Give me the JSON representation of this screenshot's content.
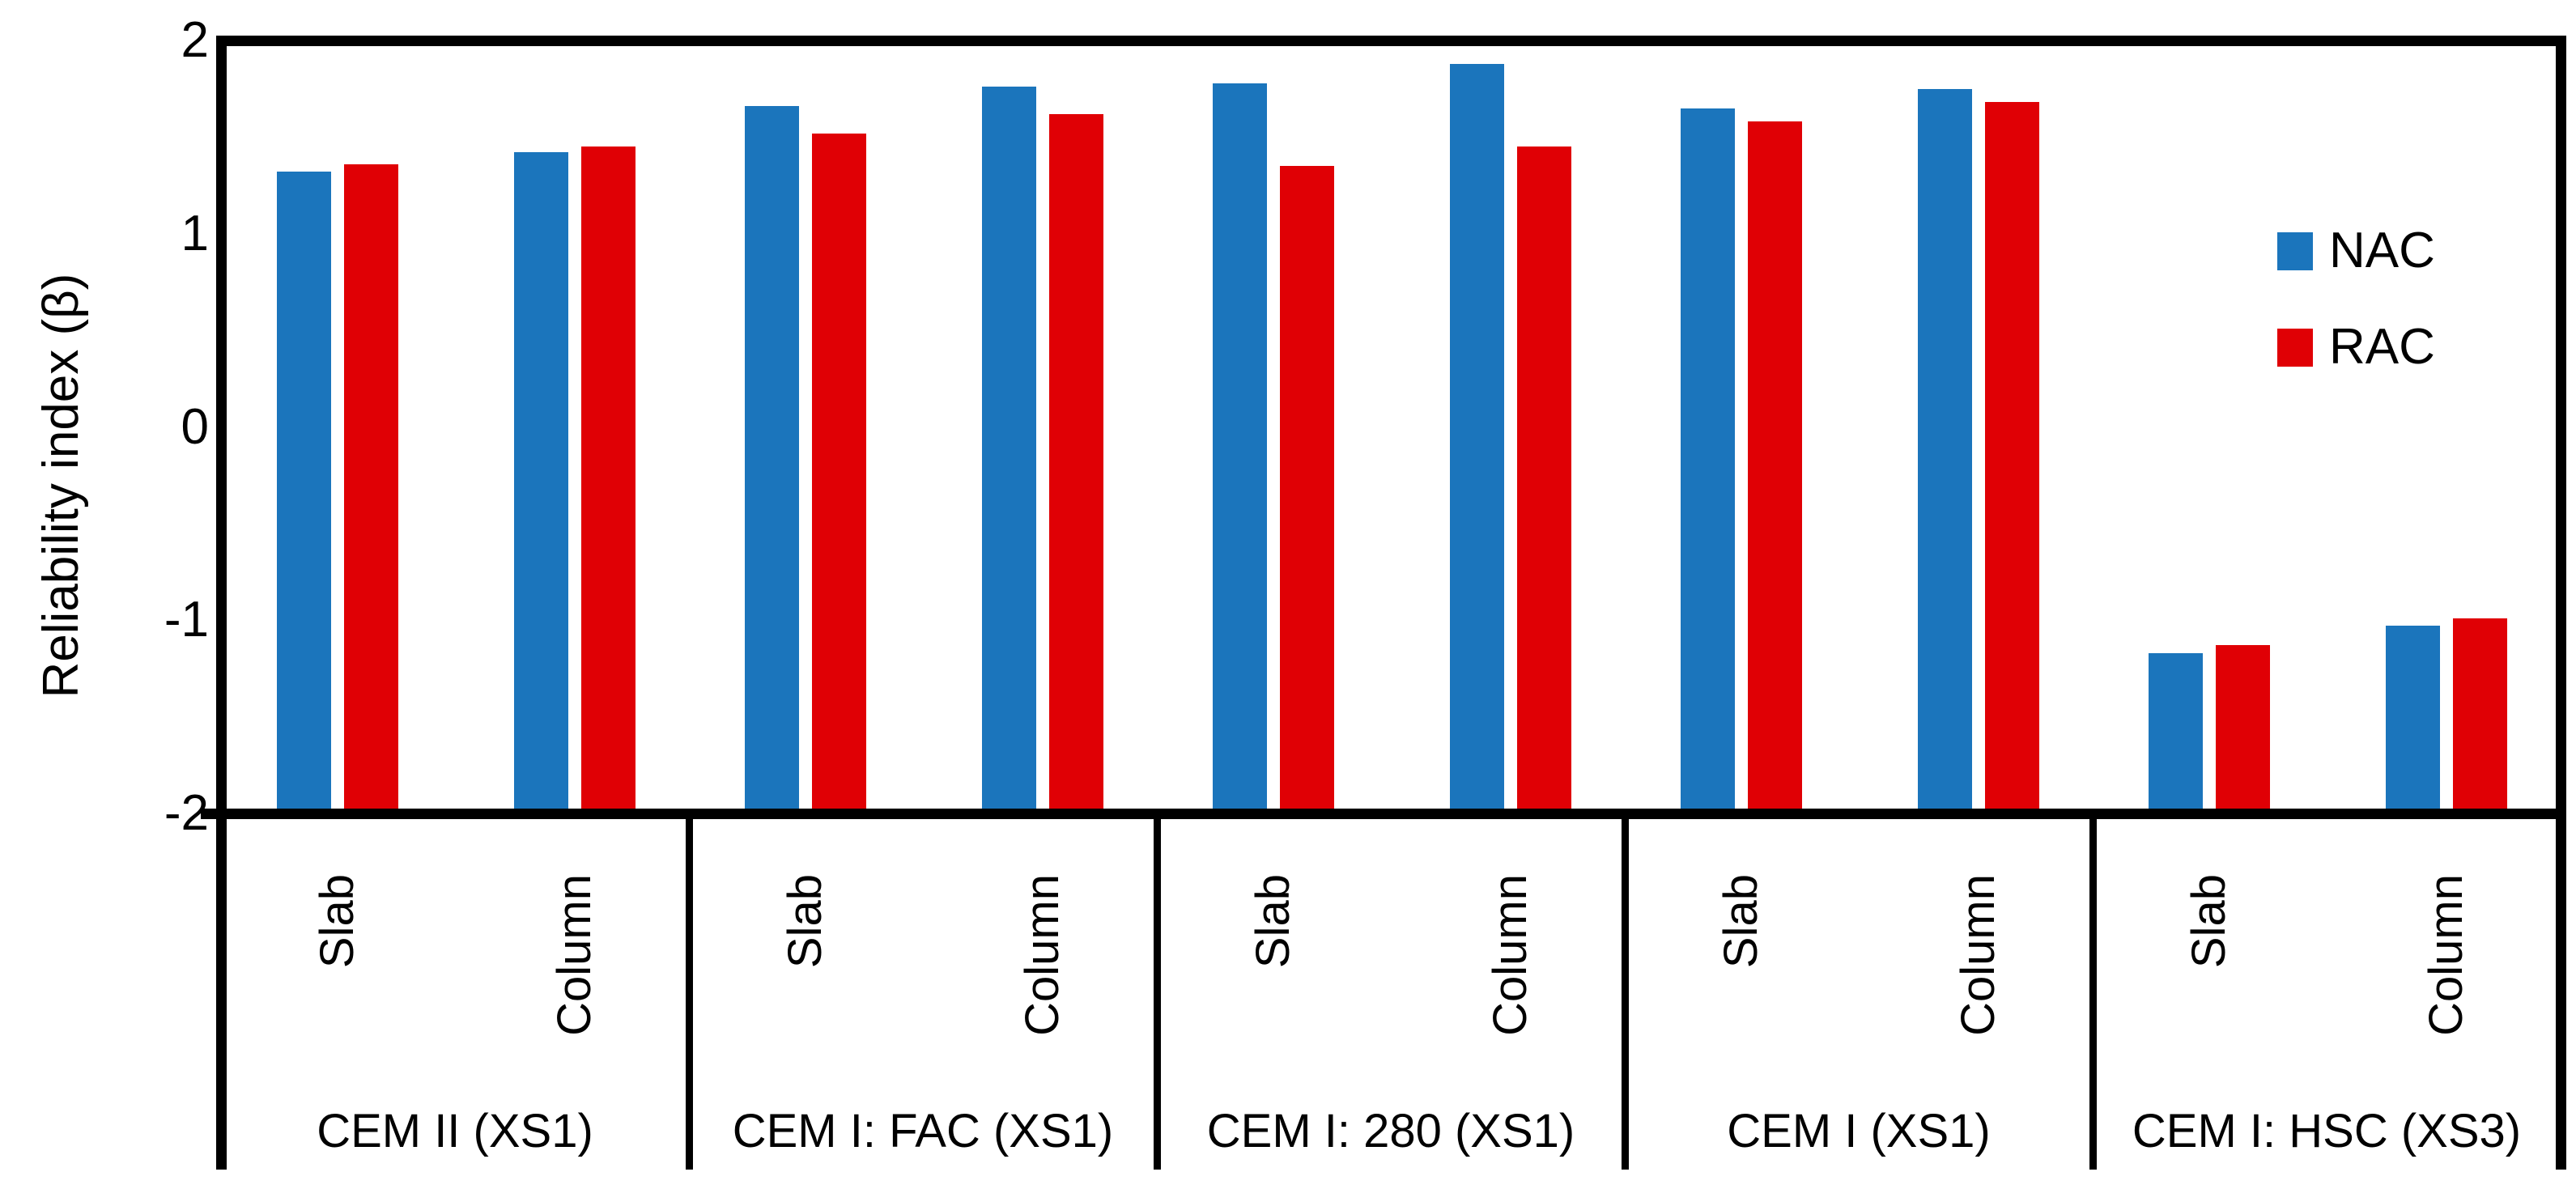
{
  "chart_data": {
    "type": "bar",
    "title": "",
    "ylabel": "Reliability index (β)",
    "xlabel": "",
    "ylim": [
      -2,
      2
    ],
    "ytick_labels": [
      "2",
      "1",
      "0",
      "-1",
      "-2"
    ],
    "ytick_values": [
      2,
      1,
      0,
      -1,
      -2
    ],
    "bar_base": -2,
    "grid": false,
    "legend_position": "right",
    "group_labels": [
      "CEM II (XS1)",
      "CEM I: FAC (XS1)",
      "CEM I: 280 (XS1)",
      "CEM I (XS1)",
      "CEM I: HSC (XS3)"
    ],
    "subcategories": [
      "Slab",
      "Column"
    ],
    "series": [
      {
        "name": "NAC",
        "color": "#1B75BC",
        "values": [
          [
            1.32,
            1.42
          ],
          [
            1.66,
            1.76
          ],
          [
            1.78,
            1.88
          ],
          [
            1.65,
            1.75
          ],
          [
            -1.17,
            -1.03
          ]
        ]
      },
      {
        "name": "RAC",
        "color": "#E00005",
        "values": [
          [
            1.36,
            1.45
          ],
          [
            1.52,
            1.62
          ],
          [
            1.35,
            1.45
          ],
          [
            1.58,
            1.68
          ],
          [
            -1.13,
            -0.99
          ]
        ]
      }
    ],
    "axis_color": "#000000",
    "background_color": "#ffffff"
  }
}
